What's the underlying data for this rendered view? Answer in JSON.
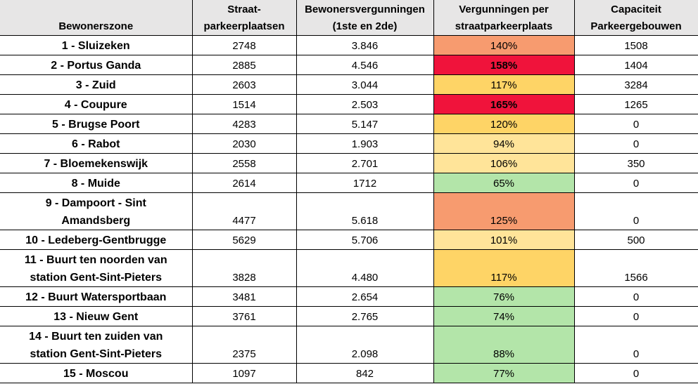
{
  "header": {
    "zone": "Bewonerszone",
    "street_parking": [
      "Straat-",
      "parkeerplaatsen"
    ],
    "permits": [
      "Bewonersvergunningen",
      "(1ste en 2de)"
    ],
    "per_place": [
      "Vergunningen per",
      "straatparkeerplaats"
    ],
    "capacity": [
      "Capaciteit",
      "Parkeergebouwen"
    ]
  },
  "colors": {
    "header_bg": "#e7e6e6",
    "orange": "#f79b6f",
    "red": "#f0133b",
    "yellow": "#fed466",
    "light_yellow": "#ffe499",
    "green": "#b3e5a9"
  },
  "rows": [
    {
      "zone": [
        "1 - Sluizeken"
      ],
      "street": "2748",
      "permits": "3.846",
      "ratio": "140%",
      "capacity": "1508",
      "color": "#f79b6f",
      "bold": false
    },
    {
      "zone": [
        "2 - Portus Ganda"
      ],
      "street": "2885",
      "permits": "4.546",
      "ratio": "158%",
      "capacity": "1404",
      "color": "#f0133b",
      "bold": true
    },
    {
      "zone": [
        "3 - Zuid"
      ],
      "street": "2603",
      "permits": "3.044",
      "ratio": "117%",
      "capacity": "3284",
      "color": "#fed466",
      "bold": false
    },
    {
      "zone": [
        "4 - Coupure"
      ],
      "street": "1514",
      "permits": "2.503",
      "ratio": "165%",
      "capacity": "1265",
      "color": "#f0133b",
      "bold": true
    },
    {
      "zone": [
        "5 - Brugse Poort"
      ],
      "street": "4283",
      "permits": "5.147",
      "ratio": "120%",
      "capacity": "0",
      "color": "#fed466",
      "bold": false
    },
    {
      "zone": [
        "6 - Rabot"
      ],
      "street": "2030",
      "permits": "1.903",
      "ratio": "94%",
      "capacity": "0",
      "color": "#ffe499",
      "bold": false
    },
    {
      "zone": [
        "7 - Bloemekenswijk"
      ],
      "street": "2558",
      "permits": "2.701",
      "ratio": "106%",
      "capacity": "350",
      "color": "#ffe499",
      "bold": false
    },
    {
      "zone": [
        "8 - Muide"
      ],
      "street": "2614",
      "permits": "1712",
      "ratio": "65%",
      "capacity": "0",
      "color": "#b3e5a9",
      "bold": false
    },
    {
      "zone": [
        "9 - Dampoort - Sint",
        "Amandsberg"
      ],
      "street": "4477",
      "permits": "5.618",
      "ratio": "125%",
      "capacity": "0",
      "color": "#f79b6f",
      "bold": false
    },
    {
      "zone": [
        "10 - Ledeberg-Gentbrugge"
      ],
      "street": "5629",
      "permits": "5.706",
      "ratio": "101%",
      "capacity": "500",
      "color": "#ffe499",
      "bold": false
    },
    {
      "zone": [
        "11 - Buurt ten noorden van",
        "station Gent-Sint-Pieters"
      ],
      "street": "3828",
      "permits": "4.480",
      "ratio": "117%",
      "capacity": "1566",
      "color": "#fed466",
      "bold": false
    },
    {
      "zone": [
        "12 - Buurt Watersportbaan"
      ],
      "street": "3481",
      "permits": "2.654",
      "ratio": "76%",
      "capacity": "0",
      "color": "#b3e5a9",
      "bold": false
    },
    {
      "zone": [
        "13 - Nieuw Gent"
      ],
      "street": "3761",
      "permits": "2.765",
      "ratio": "74%",
      "capacity": "0",
      "color": "#b3e5a9",
      "bold": false
    },
    {
      "zone": [
        "14 - Buurt ten zuiden van",
        "station Gent-Sint-Pieters"
      ],
      "street": "2375",
      "permits": "2.098",
      "ratio": "88%",
      "capacity": "0",
      "color": "#b3e5a9",
      "bold": false
    },
    {
      "zone": [
        "15 - Moscou"
      ],
      "street": "1097",
      "permits": "842",
      "ratio": "77%",
      "capacity": "0",
      "color": "#b3e5a9",
      "bold": false
    }
  ]
}
